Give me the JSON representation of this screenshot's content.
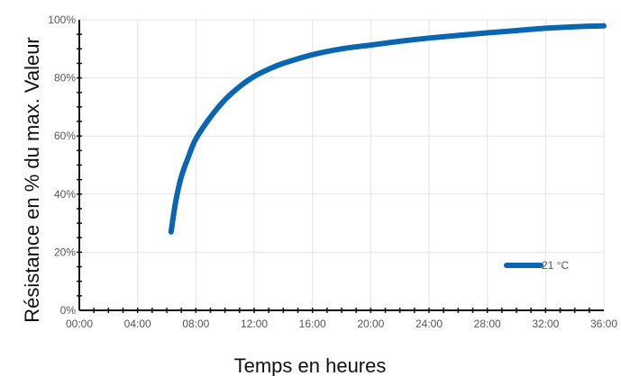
{
  "chart_data": {
    "type": "line",
    "title": "",
    "xlabel": "Temps en heures",
    "ylabel": "Résistance en % du max. Valeur",
    "xlim": [
      0,
      36
    ],
    "ylim": [
      0,
      100
    ],
    "x_ticks": [
      "00:00",
      "04:00",
      "08:00",
      "12:00",
      "16:00",
      "20:00",
      "24:00",
      "28:00",
      "32:00",
      "36:00"
    ],
    "y_ticks": [
      "0%",
      "20%",
      "40%",
      "60%",
      "80%",
      "100%"
    ],
    "grid": true,
    "legend_position": "bottom-right",
    "series": [
      {
        "name": "21 °C",
        "color": "#0a66b0",
        "x": [
          6.3,
          6.6,
          7.0,
          7.5,
          8.0,
          9.0,
          10.0,
          11.0,
          12.0,
          13.0,
          14.0,
          16.0,
          18.0,
          20.0,
          22.0,
          24.0,
          26.0,
          28.0,
          30.0,
          32.0,
          34.0,
          36.0
        ],
        "y": [
          27,
          37,
          46,
          53,
          59,
          66.5,
          72.5,
          77,
          80.5,
          83,
          85,
          88,
          90,
          91.3,
          92.6,
          93.7,
          94.6,
          95.5,
          96.3,
          97.1,
          97.6,
          97.9
        ]
      }
    ]
  }
}
